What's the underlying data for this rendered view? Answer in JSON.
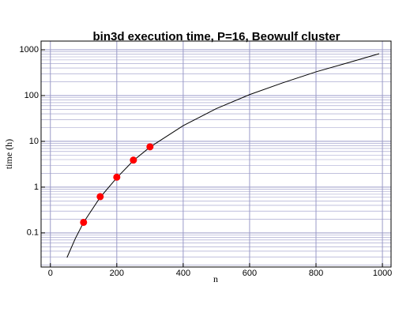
{
  "chart_data": {
    "type": "line",
    "title": "bin3d execution time, P=16, Beowulf cluster",
    "x_label": "n",
    "y_label": "time (h)",
    "xlim": [
      -28,
      1026
    ],
    "xticks": [
      0,
      200,
      400,
      600,
      800,
      1000
    ],
    "ylim": [
      0.018,
      1550
    ],
    "yticks": [
      0.1,
      1,
      10,
      100,
      1000
    ],
    "y_minor_ticks": [
      0.02,
      0.03,
      0.04,
      0.05,
      0.06,
      0.07,
      0.08,
      0.09,
      0.2,
      0.3,
      0.4,
      0.5,
      0.6,
      0.7,
      0.8,
      0.9,
      2,
      3,
      4,
      5,
      6,
      7,
      8,
      9,
      20,
      30,
      40,
      50,
      60,
      70,
      80,
      90,
      200,
      300,
      400,
      500,
      600,
      700,
      800,
      900
    ],
    "y_log": true,
    "grid": true,
    "grid_color": "#9a9ac8",
    "series": [
      {
        "type": "line",
        "color": "#000000",
        "x": [
          50,
          75,
          100,
          150,
          200,
          250,
          300,
          400,
          500,
          600,
          700,
          800,
          900,
          990
        ],
        "values": [
          0.029,
          0.075,
          0.17,
          0.6,
          1.6,
          3.8,
          7.5,
          22,
          52,
          105,
          190,
          330,
          530,
          820
        ]
      },
      {
        "type": "scatter",
        "color": "#ff0000",
        "x": [
          100,
          150,
          200,
          250,
          300
        ],
        "values": [
          0.17,
          0.62,
          1.65,
          3.9,
          7.6
        ]
      }
    ]
  }
}
